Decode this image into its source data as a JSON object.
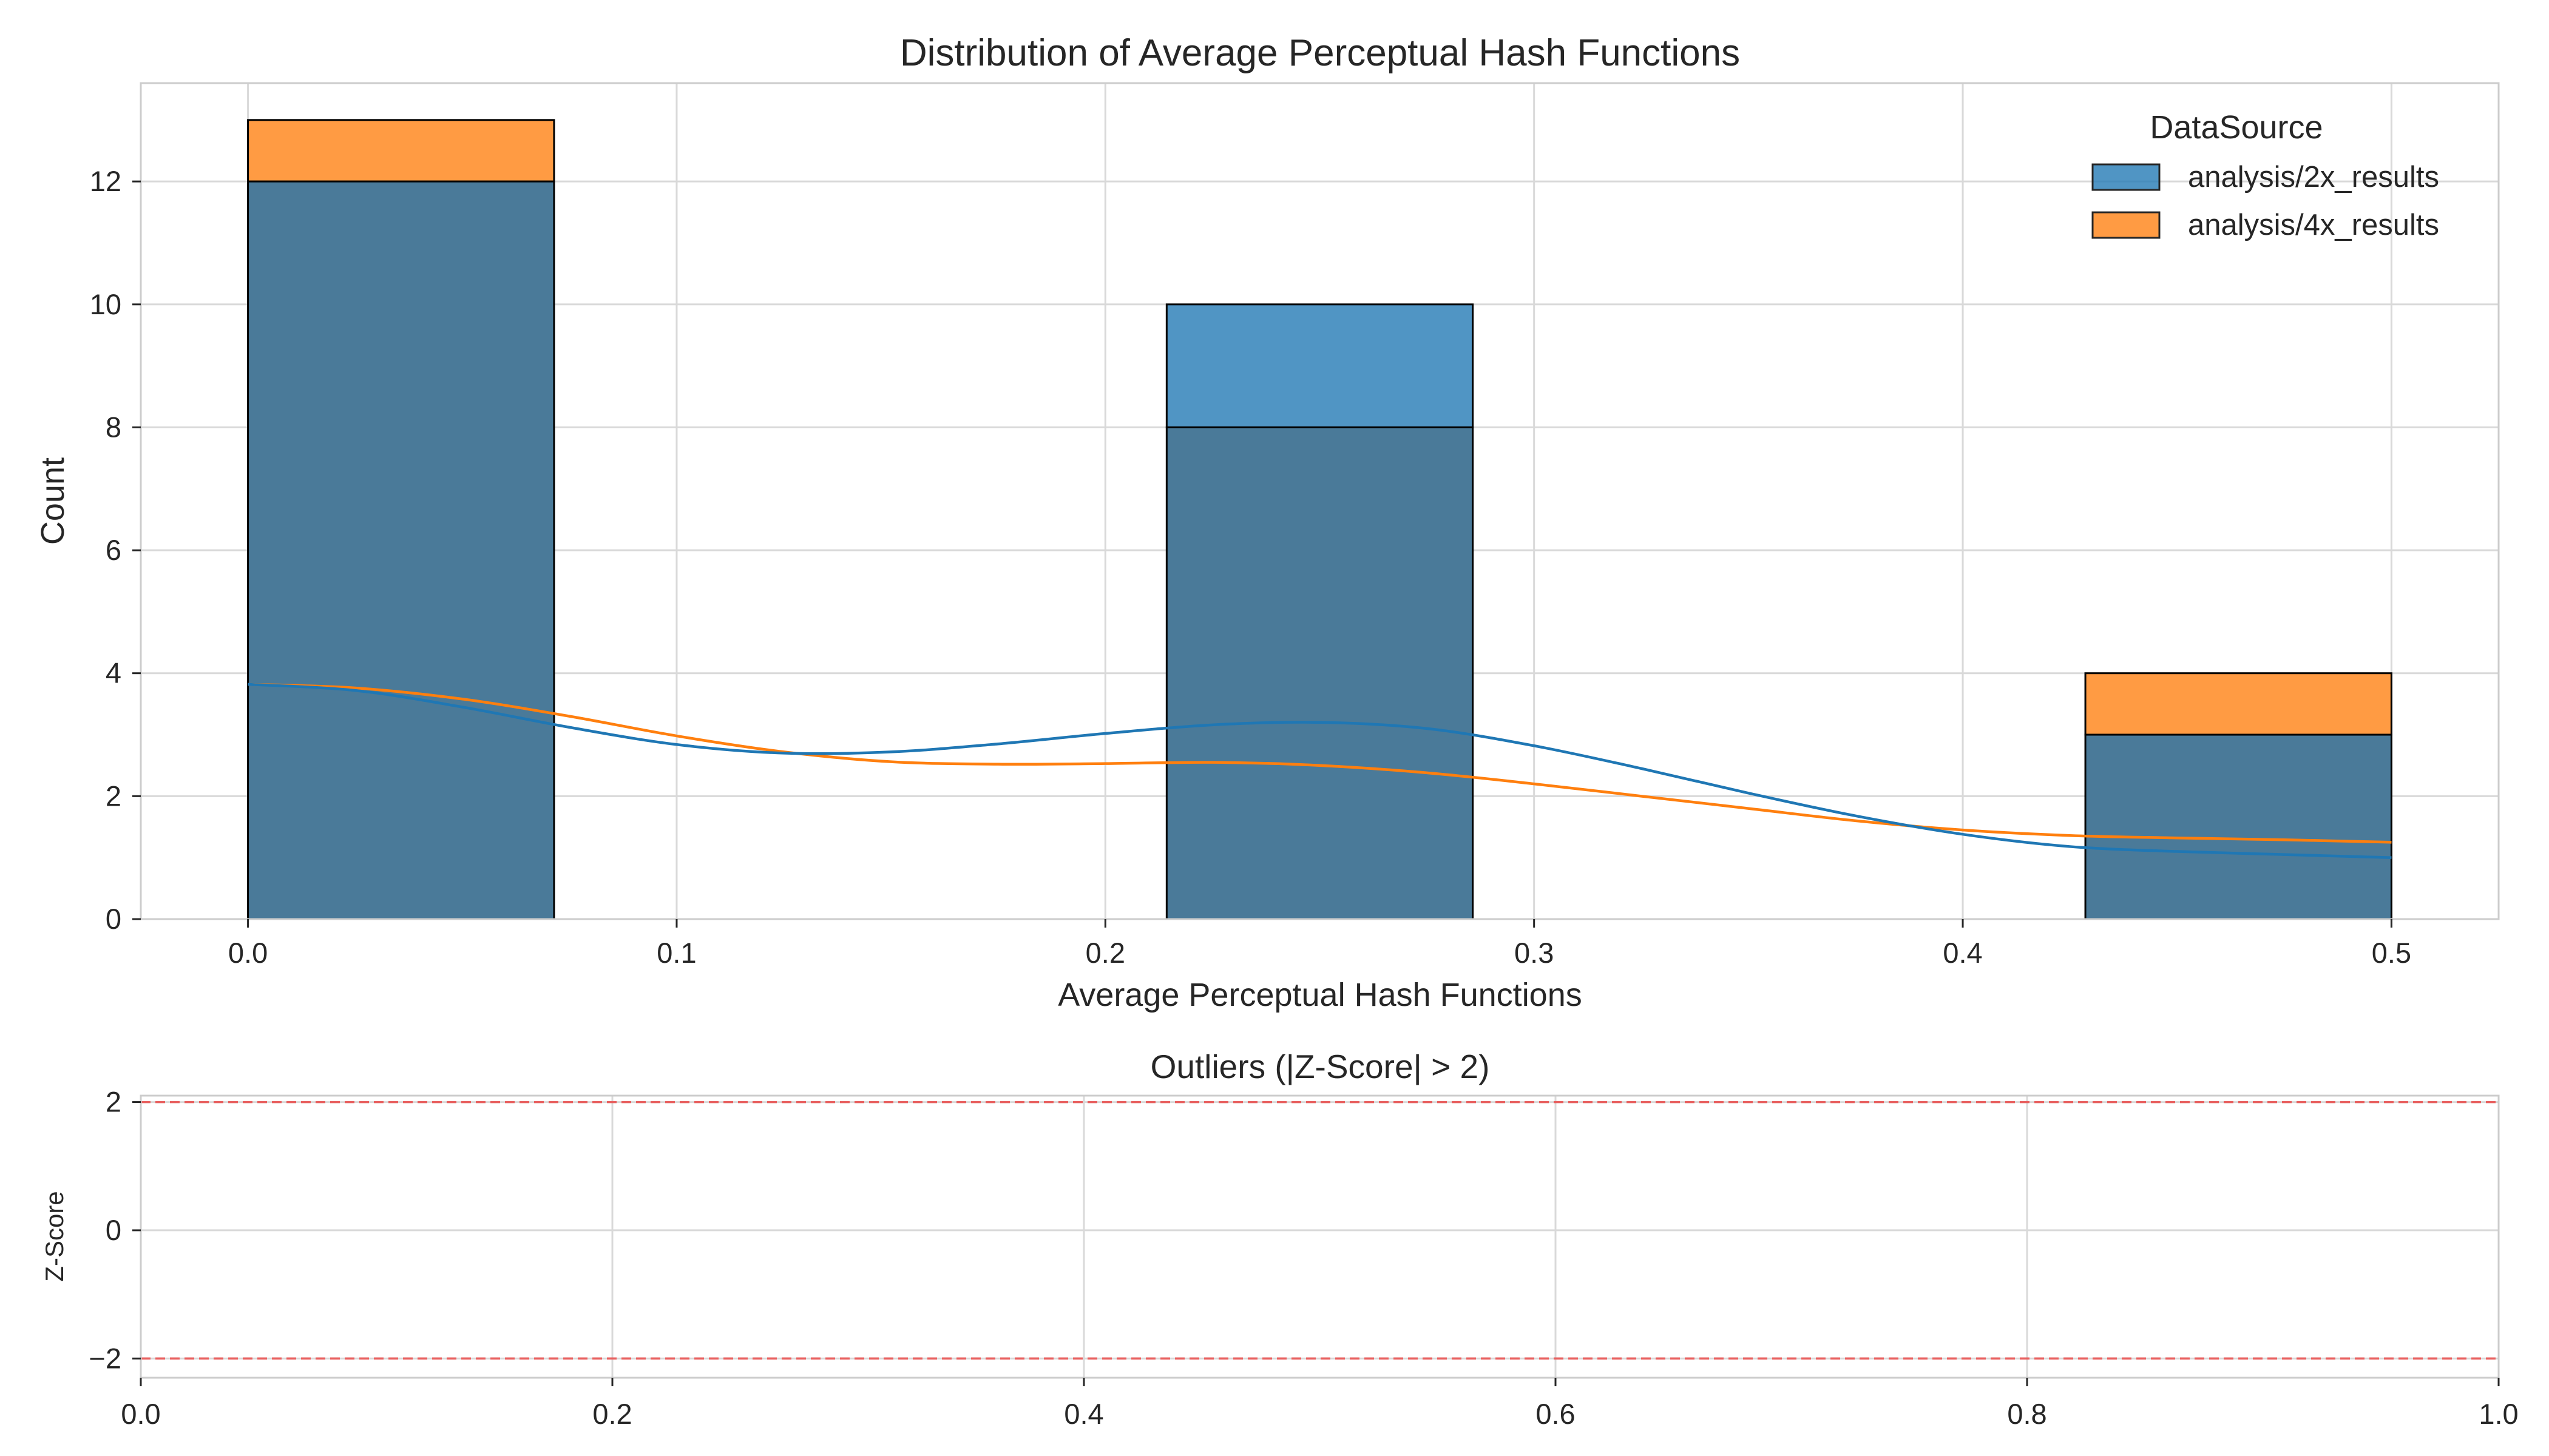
{
  "chart_data": [
    {
      "type": "histogram",
      "title": "Distribution of Average Perceptual Hash Functions",
      "xlabel": "Average Perceptual Hash Functions",
      "ylabel": "Count",
      "xlim": [
        -0.025,
        0.525
      ],
      "ylim": [
        0,
        13.6
      ],
      "xticks": [
        0.0,
        0.1,
        0.2,
        0.3,
        0.4,
        0.5
      ],
      "xtick_labels": [
        "0.0",
        "0.1",
        "0.2",
        "0.3",
        "0.4",
        "0.5"
      ],
      "yticks": [
        0,
        2,
        4,
        6,
        8,
        10,
        12
      ],
      "ytick_labels": [
        "0",
        "2",
        "4",
        "6",
        "8",
        "10",
        "12"
      ],
      "grid": true,
      "legend": {
        "title": "DataSource",
        "placement": "top-right"
      },
      "bins": [
        [
          0.0,
          0.0714
        ],
        [
          0.2143,
          0.2857
        ],
        [
          0.4286,
          0.5
        ]
      ],
      "series": [
        {
          "name": "analysis/2x_results",
          "color": "#1f77b4",
          "values": [
            12,
            10,
            3
          ]
        },
        {
          "name": "analysis/4x_results",
          "color": "#ff7f0e",
          "values": [
            13,
            8,
            4
          ]
        }
      ],
      "overlap_color": "#4a7a99",
      "kde": [
        {
          "series": "analysis/2x_results",
          "color": "#1f77b4",
          "x": [
            0.0,
            0.025,
            0.05,
            0.075,
            0.1,
            0.125,
            0.15,
            0.175,
            0.2,
            0.225,
            0.25,
            0.275,
            0.3,
            0.325,
            0.35,
            0.375,
            0.4,
            0.425,
            0.45,
            0.475,
            0.5
          ],
          "y": [
            3.82,
            3.72,
            3.45,
            3.12,
            2.84,
            2.7,
            2.72,
            2.85,
            3.02,
            3.16,
            3.2,
            3.1,
            2.82,
            2.45,
            2.05,
            1.68,
            1.38,
            1.18,
            1.1,
            1.05,
            1.0
          ]
        },
        {
          "series": "analysis/4x_results",
          "color": "#ff7f0e",
          "x": [
            0.0,
            0.025,
            0.05,
            0.075,
            0.1,
            0.125,
            0.15,
            0.175,
            0.2,
            0.225,
            0.25,
            0.275,
            0.3,
            0.325,
            0.35,
            0.375,
            0.4,
            0.425,
            0.45,
            0.475,
            0.5
          ],
          "y": [
            3.82,
            3.76,
            3.58,
            3.3,
            2.98,
            2.72,
            2.56,
            2.52,
            2.53,
            2.55,
            2.5,
            2.38,
            2.2,
            2.0,
            1.8,
            1.6,
            1.45,
            1.36,
            1.32,
            1.29,
            1.25
          ]
        }
      ]
    },
    {
      "type": "scatter",
      "title": "Outliers (|Z-Score| > 2)",
      "xlabel": "",
      "ylabel": "Z-Score",
      "xlim": [
        0.0,
        1.0
      ],
      "ylim": [
        -2.3,
        2.1
      ],
      "xticks": [
        0.0,
        0.2,
        0.4,
        0.6,
        0.8,
        1.0
      ],
      "xtick_labels": [
        "0.0",
        "0.2",
        "0.4",
        "0.6",
        "0.8",
        "1.0"
      ],
      "yticks": [
        2,
        0,
        -2
      ],
      "ytick_labels": [
        "2",
        "0",
        "−2"
      ],
      "grid": true,
      "threshold_lines": [
        2,
        -2
      ],
      "threshold_color": "#e8605f",
      "points": []
    }
  ]
}
